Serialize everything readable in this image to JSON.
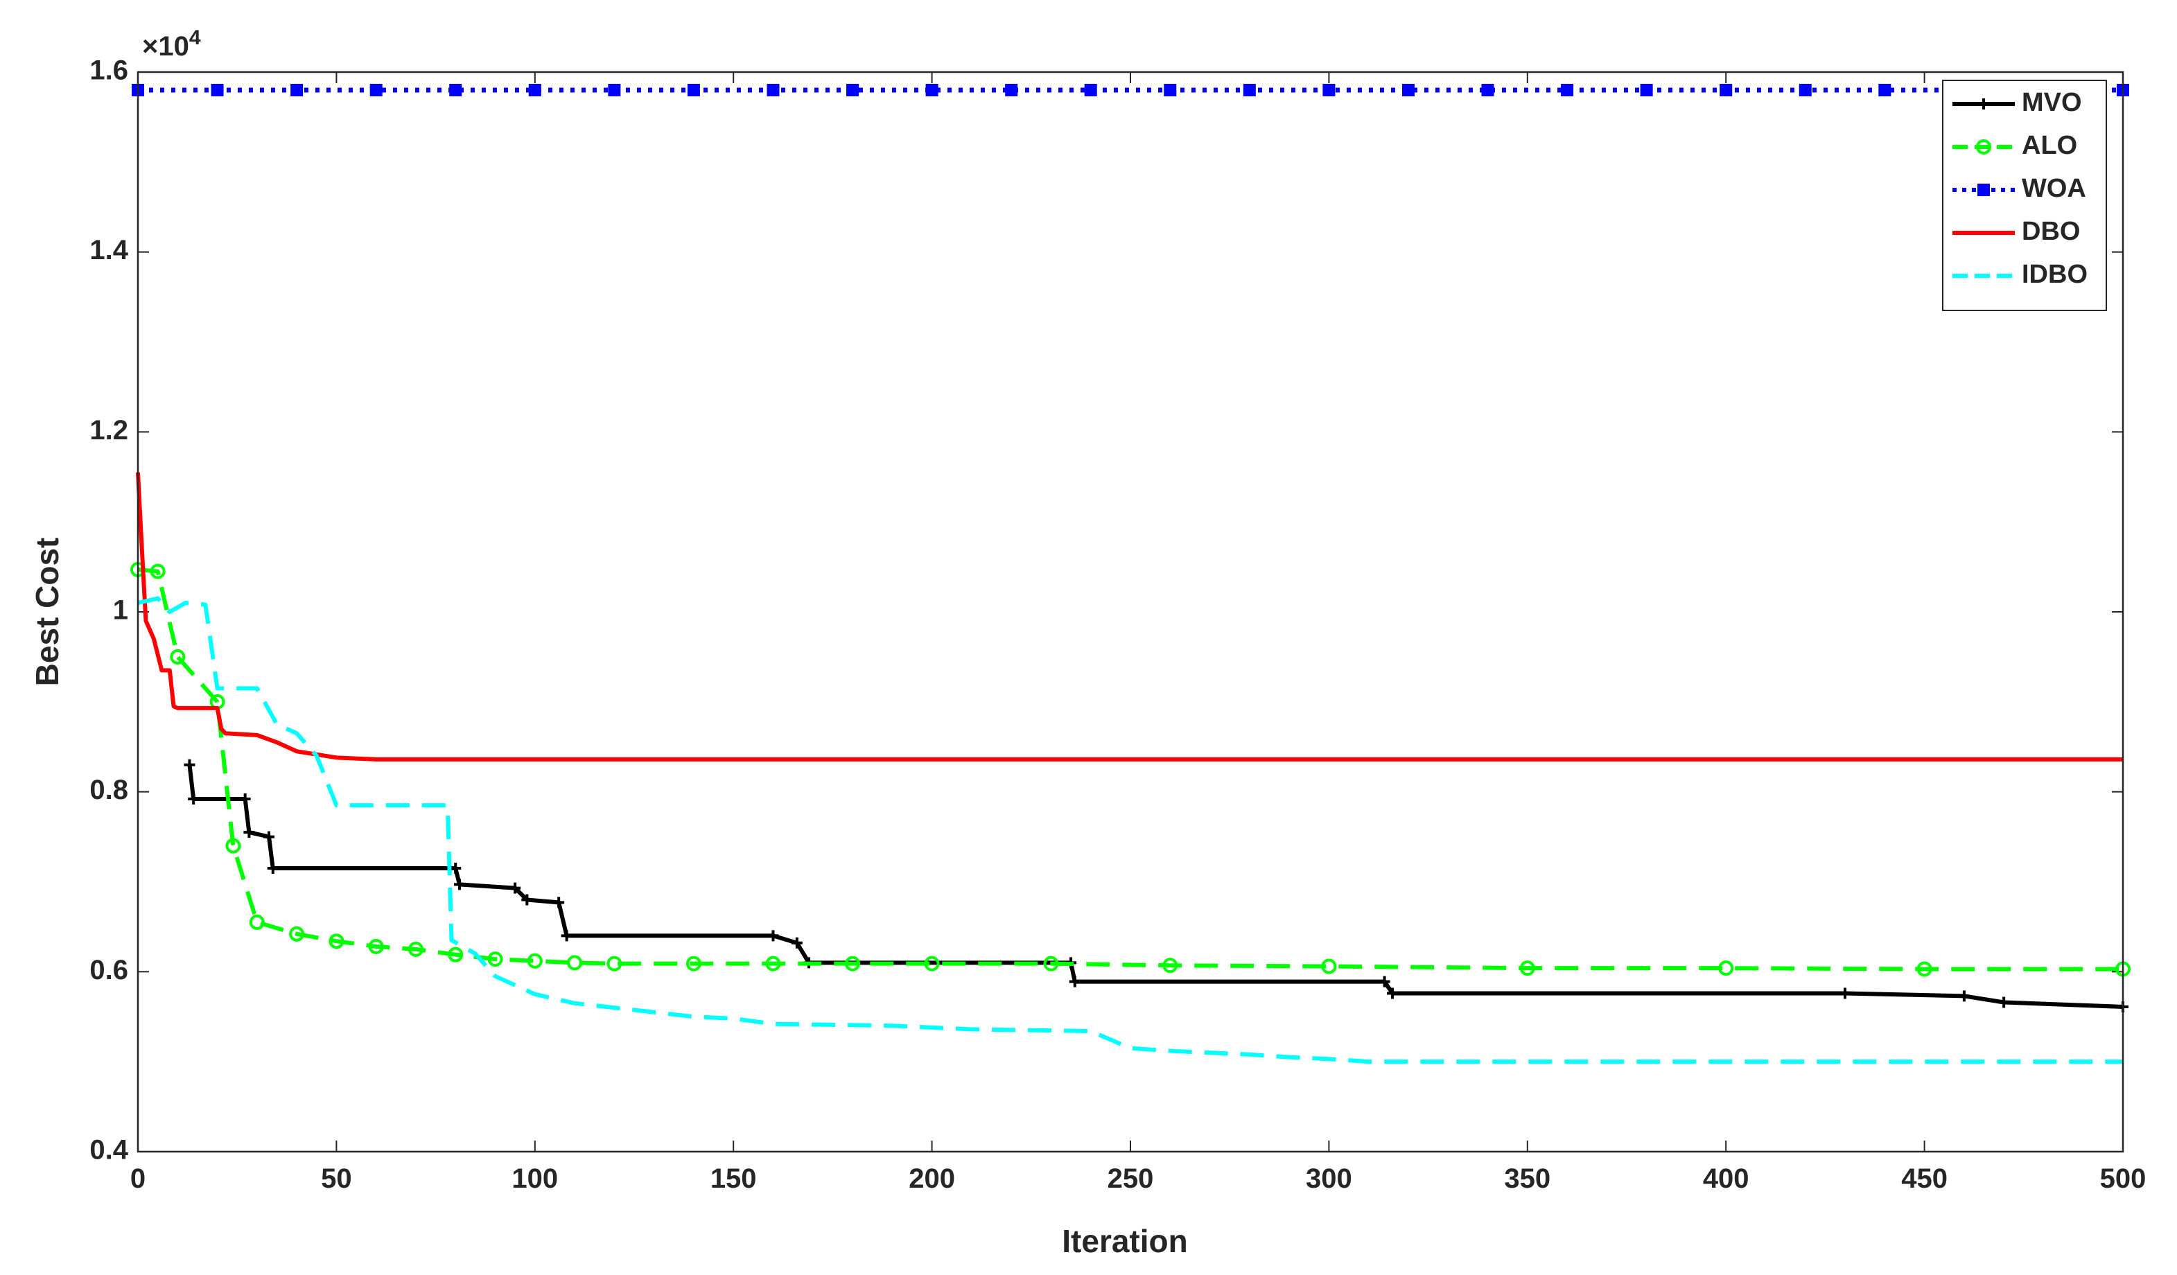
{
  "chart_data": {
    "type": "line",
    "x_label": "Iteration",
    "y_label": "Best Cost",
    "y_scale_base": "×10",
    "y_scale_exponent": "4",
    "xlim": [
      0,
      500
    ],
    "ylim": [
      0.4,
      1.6
    ],
    "xticks": [
      0,
      50,
      100,
      150,
      200,
      250,
      300,
      350,
      400,
      450,
      500
    ],
    "yticks": [
      0.4,
      0.6,
      0.8,
      1,
      1.2,
      1.4,
      1.6
    ],
    "grid": false,
    "legend": "top-right",
    "series": [
      {
        "name": "MVO",
        "color": "#000000",
        "dash": "solid",
        "marker": "plus",
        "x": [
          13,
          14,
          27,
          28,
          33,
          34,
          80,
          81,
          95,
          98,
          106,
          108,
          160,
          166,
          169,
          235,
          236,
          314,
          316,
          430,
          460,
          470,
          500
        ],
        "values": [
          0.83,
          0.792,
          0.792,
          0.755,
          0.75,
          0.715,
          0.715,
          0.697,
          0.693,
          0.68,
          0.677,
          0.64,
          0.64,
          0.632,
          0.61,
          0.61,
          0.589,
          0.589,
          0.576,
          0.576,
          0.573,
          0.566,
          0.561
        ]
      },
      {
        "name": "ALO",
        "color": "#00ff00",
        "dash": "dashed",
        "marker": "circle",
        "x": [
          0,
          5,
          10,
          20,
          24,
          30,
          40,
          50,
          60,
          70,
          80,
          90,
          100,
          110,
          120,
          140,
          160,
          180,
          200,
          230,
          260,
          300,
          350,
          400,
          450,
          500
        ],
        "values": [
          1.047,
          1.045,
          0.95,
          0.9,
          0.74,
          0.655,
          0.642,
          0.634,
          0.628,
          0.625,
          0.619,
          0.614,
          0.612,
          0.61,
          0.609,
          0.609,
          0.609,
          0.609,
          0.609,
          0.609,
          0.607,
          0.606,
          0.604,
          0.604,
          0.603,
          0.603
        ]
      },
      {
        "name": "WOA",
        "color": "#0000ff",
        "dash": "dotted",
        "marker": "square",
        "x": [
          0,
          20,
          40,
          60,
          80,
          100,
          120,
          140,
          160,
          180,
          200,
          220,
          240,
          260,
          280,
          300,
          320,
          340,
          360,
          380,
          400,
          420,
          440,
          460,
          480,
          500
        ],
        "values": [
          1.58,
          1.58,
          1.58,
          1.58,
          1.58,
          1.58,
          1.58,
          1.58,
          1.58,
          1.58,
          1.58,
          1.58,
          1.58,
          1.58,
          1.58,
          1.58,
          1.58,
          1.58,
          1.58,
          1.58,
          1.58,
          1.58,
          1.58,
          1.58,
          1.58,
          1.58
        ]
      },
      {
        "name": "DBO",
        "color": "#ff0000",
        "dash": "solid",
        "marker": "none",
        "x": [
          0,
          1,
          2,
          3,
          4,
          6,
          8,
          9,
          10,
          20,
          21,
          22,
          30,
          35,
          40,
          50,
          60,
          500
        ],
        "values": [
          1.155,
          1.07,
          0.99,
          0.98,
          0.97,
          0.935,
          0.935,
          0.895,
          0.893,
          0.893,
          0.87,
          0.865,
          0.863,
          0.855,
          0.845,
          0.838,
          0.836,
          0.836
        ]
      },
      {
        "name": "IDBO",
        "color": "#00ffff",
        "dash": "dashed",
        "marker": "none",
        "x": [
          0,
          5,
          8,
          12,
          17,
          20,
          30,
          35,
          40,
          45,
          50,
          78,
          79,
          85,
          90,
          100,
          110,
          120,
          130,
          140,
          150,
          160,
          190,
          210,
          240,
          250,
          260,
          270,
          280,
          290,
          300,
          310,
          500
        ],
        "values": [
          1.01,
          1.015,
          1.0,
          1.01,
          1.008,
          0.915,
          0.915,
          0.875,
          0.865,
          0.84,
          0.785,
          0.785,
          0.635,
          0.62,
          0.595,
          0.575,
          0.565,
          0.56,
          0.555,
          0.55,
          0.548,
          0.542,
          0.54,
          0.536,
          0.534,
          0.515,
          0.512,
          0.51,
          0.508,
          0.505,
          0.503,
          0.5,
          0.5
        ]
      }
    ]
  }
}
